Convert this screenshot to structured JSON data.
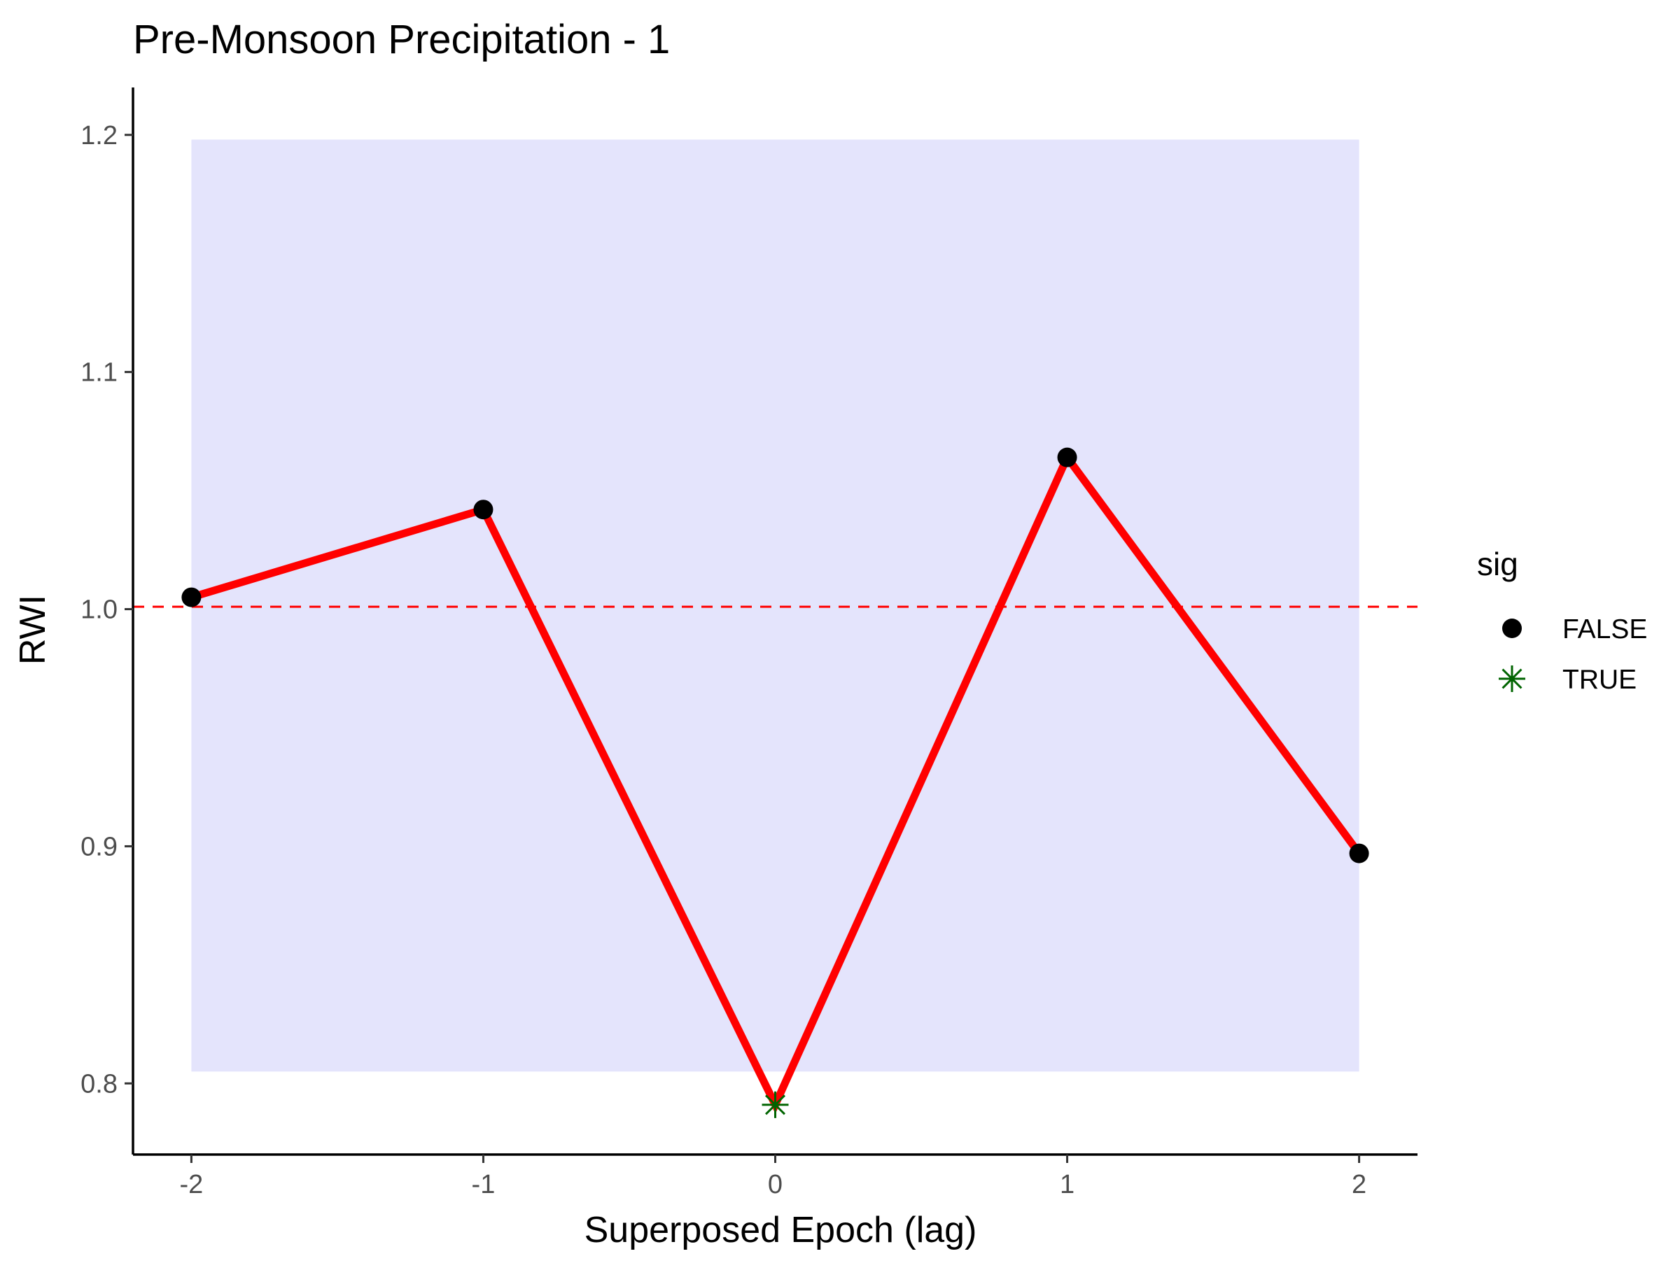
{
  "chart_data": {
    "type": "line",
    "title": "Pre-Monsoon Precipitation - 1",
    "xlabel": "Superposed Epoch (lag)",
    "ylabel": "RWI",
    "x": [
      -2,
      -1,
      0,
      1,
      2
    ],
    "x_tick_labels": [
      "-2",
      "-1",
      "0",
      "1",
      "2"
    ],
    "y_ticks": [
      0.8,
      0.9,
      1.0,
      1.1,
      1.2
    ],
    "y_tick_labels": [
      "0.8",
      "0.9",
      "1.0",
      "1.1",
      "1.2"
    ],
    "xlim": [
      -2.2,
      2.2
    ],
    "ylim": [
      0.77,
      1.22
    ],
    "grid": false,
    "series": [
      {
        "values": [
          1.005,
          1.042,
          0.791,
          1.064,
          0.897
        ],
        "sig": [
          false,
          false,
          true,
          false,
          false
        ],
        "color": "#ff0000"
      }
    ],
    "reference_line": {
      "y": 1.001,
      "style": "dashed",
      "color": "#ff0000"
    },
    "confidence_band": {
      "x": [
        -2,
        2
      ],
      "y": [
        0.805,
        1.198
      ],
      "color": "#e4e4fc"
    },
    "legend": {
      "title": "sig",
      "position": "right",
      "entries": [
        {
          "label": "FALSE",
          "shape": "circle",
          "color": "#000000"
        },
        {
          "label": "TRUE",
          "shape": "asterisk",
          "color": "#006400"
        }
      ]
    }
  }
}
